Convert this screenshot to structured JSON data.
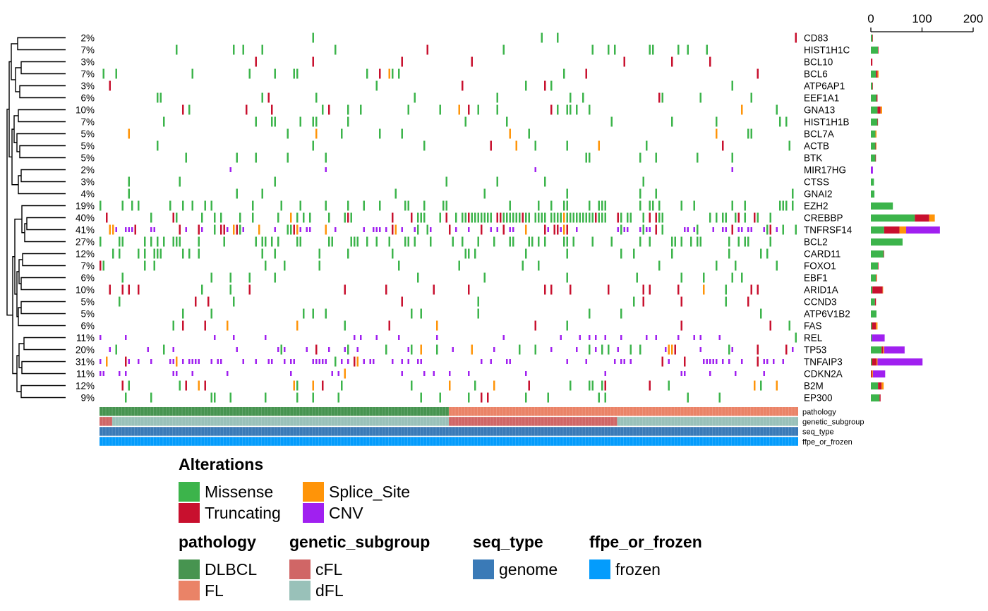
{
  "chart_data": {
    "type": "oncoprint",
    "n_samples": 220,
    "colors": {
      "Missense": "#3cb44b",
      "Truncating": "#c8102e",
      "Splice_Site": "#ff9408",
      "CNV": "#a020f0",
      "DLBCL": "#479450",
      "FL": "#ea8367",
      "cFL": "#d06666",
      "dFL": "#99c1b9",
      "genome": "#3a7ab7",
      "frozen": "#049cfc"
    },
    "genes": [
      {
        "name": "CD83",
        "pct": "2%",
        "miss": 3,
        "trunc": 1,
        "splice": 0,
        "cnv": 0
      },
      {
        "name": "HIST1H1C",
        "pct": "7%",
        "miss": 14,
        "trunc": 1,
        "splice": 0,
        "cnv": 0
      },
      {
        "name": "BCL10",
        "pct": "3%",
        "miss": 0,
        "trunc": 3,
        "splice": 0,
        "cnv": 0
      },
      {
        "name": "BCL6",
        "pct": "7%",
        "miss": 10,
        "trunc": 3,
        "splice": 2,
        "cnv": 0
      },
      {
        "name": "ATP6AP1",
        "pct": "3%",
        "miss": 3,
        "trunc": 1,
        "splice": 0,
        "cnv": 0
      },
      {
        "name": "EEF1A1",
        "pct": "6%",
        "miss": 11,
        "trunc": 2,
        "splice": 0,
        "cnv": 0
      },
      {
        "name": "GNA13",
        "pct": "10%",
        "miss": 13,
        "trunc": 6,
        "splice": 3,
        "cnv": 0
      },
      {
        "name": "HIST1H1B",
        "pct": "7%",
        "miss": 13,
        "trunc": 1,
        "splice": 0,
        "cnv": 0
      },
      {
        "name": "BCL7A",
        "pct": "5%",
        "miss": 9,
        "trunc": 0,
        "splice": 2,
        "cnv": 0
      },
      {
        "name": "ACTB",
        "pct": "5%",
        "miss": 9,
        "trunc": 1,
        "splice": 1,
        "cnv": 0
      },
      {
        "name": "BTK",
        "pct": "5%",
        "miss": 9,
        "trunc": 1,
        "splice": 0,
        "cnv": 0
      },
      {
        "name": "MIR17HG",
        "pct": "2%",
        "miss": 0,
        "trunc": 0,
        "splice": 0,
        "cnv": 4
      },
      {
        "name": "CTSS",
        "pct": "3%",
        "miss": 6,
        "trunc": 0,
        "splice": 0,
        "cnv": 0
      },
      {
        "name": "GNAI2",
        "pct": "4%",
        "miss": 7,
        "trunc": 0,
        "splice": 0,
        "cnv": 0
      },
      {
        "name": "EZH2",
        "pct": "19%",
        "miss": 43,
        "trunc": 0,
        "splice": 0,
        "cnv": 0
      },
      {
        "name": "CREBBP",
        "pct": "40%",
        "miss": 86,
        "trunc": 28,
        "splice": 11,
        "cnv": 0
      },
      {
        "name": "TNFRSF14",
        "pct": "41%",
        "miss": 26,
        "trunc": 30,
        "splice": 13,
        "cnv": 66
      },
      {
        "name": "BCL2",
        "pct": "27%",
        "miss": 62,
        "trunc": 0,
        "splice": 0,
        "cnv": 0
      },
      {
        "name": "CARD11",
        "pct": "12%",
        "miss": 25,
        "trunc": 1,
        "splice": 0,
        "cnv": 0
      },
      {
        "name": "FOXO1",
        "pct": "7%",
        "miss": 14,
        "trunc": 1,
        "splice": 0,
        "cnv": 0
      },
      {
        "name": "EBF1",
        "pct": "6%",
        "miss": 10,
        "trunc": 1,
        "splice": 1,
        "cnv": 0
      },
      {
        "name": "ARID1A",
        "pct": "10%",
        "miss": 3,
        "trunc": 20,
        "splice": 1,
        "cnv": 0
      },
      {
        "name": "CCND3",
        "pct": "5%",
        "miss": 8,
        "trunc": 2,
        "splice": 0,
        "cnv": 0
      },
      {
        "name": "ATP6V1B2",
        "pct": "5%",
        "miss": 11,
        "trunc": 0,
        "splice": 0,
        "cnv": 0
      },
      {
        "name": "FAS",
        "pct": "6%",
        "miss": 2,
        "trunc": 8,
        "splice": 3,
        "cnv": 0
      },
      {
        "name": "REL",
        "pct": "11%",
        "miss": 2,
        "trunc": 0,
        "splice": 0,
        "cnv": 25
      },
      {
        "name": "TP53",
        "pct": "20%",
        "miss": 21,
        "trunc": 3,
        "splice": 2,
        "cnv": 40
      },
      {
        "name": "TNFAIP3",
        "pct": "31%",
        "miss": 2,
        "trunc": 9,
        "splice": 2,
        "cnv": 88
      },
      {
        "name": "CDKN2A",
        "pct": "11%",
        "miss": 0,
        "trunc": 2,
        "splice": 2,
        "cnv": 24
      },
      {
        "name": "B2M",
        "pct": "12%",
        "miss": 14,
        "trunc": 7,
        "splice": 4,
        "cnv": 0
      },
      {
        "name": "EP300",
        "pct": "9%",
        "miss": 17,
        "trunc": 2,
        "splice": 0,
        "cnv": 0
      }
    ],
    "barplot_axis": {
      "ticks": [
        0,
        100,
        200
      ],
      "max": 200
    },
    "annotations": [
      {
        "name": "pathology",
        "segments": [
          {
            "value": "DLBCL",
            "from": 0,
            "to": 110
          },
          {
            "value": "FL",
            "from": 110,
            "to": 220
          }
        ]
      },
      {
        "name": "genetic_subgroup",
        "segments": [
          {
            "value": "cFL",
            "from": 0,
            "to": 4
          },
          {
            "value": "dFL",
            "from": 4,
            "to": 110
          },
          {
            "value": "cFL",
            "from": 110,
            "to": 163
          },
          {
            "value": "dFL",
            "from": 163,
            "to": 220
          }
        ]
      },
      {
        "name": "seq_type",
        "segments": [
          {
            "value": "genome",
            "from": 0,
            "to": 220
          }
        ]
      },
      {
        "name": "ffpe_or_frozen",
        "segments": [
          {
            "value": "frozen",
            "from": 0,
            "to": 220
          }
        ]
      }
    ],
    "legends": [
      {
        "title": "Alterations",
        "items": [
          "Missense",
          "Splice_Site",
          "Truncating",
          "CNV"
        ]
      },
      {
        "title": "pathology",
        "items": [
          "DLBCL",
          "FL"
        ]
      },
      {
        "title": "genetic_subgroup",
        "items": [
          "cFL",
          "dFL"
        ]
      },
      {
        "title": "seq_type",
        "items": [
          "genome"
        ]
      },
      {
        "title": "ffpe_or_frozen",
        "items": [
          "frozen"
        ]
      }
    ]
  }
}
